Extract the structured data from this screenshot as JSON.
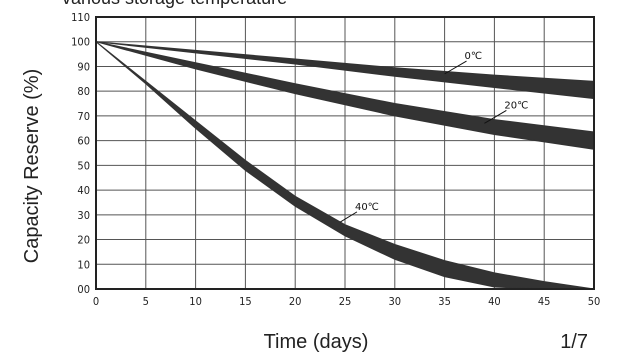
{
  "chart_data": {
    "type": "area",
    "title": "various storage temperature",
    "xlabel": "Time (days)",
    "ylabel": "Capacity Reserve (%)",
    "xlim": [
      0,
      50
    ],
    "ylim": [
      0,
      110
    ],
    "x_ticks": [
      "0",
      "5",
      "10",
      "15",
      "20",
      "25",
      "30",
      "35",
      "40",
      "45",
      "50"
    ],
    "y_ticks": [
      "00",
      "10",
      "20",
      "30",
      "40",
      "50",
      "60",
      "70",
      "80",
      "90",
      "100",
      "110"
    ],
    "grid": true,
    "series": [
      {
        "name": "0℃",
        "color": "#333333",
        "x": [
          0,
          10,
          20,
          30,
          40,
          50
        ],
        "upper": [
          100,
          96.5,
          93,
          89.5,
          86.5,
          84
        ],
        "lower": [
          100,
          95.5,
          91,
          86,
          81.5,
          77
        ]
      },
      {
        "name": "20℃",
        "color": "#333333",
        "x": [
          0,
          10,
          20,
          30,
          40,
          50
        ],
        "upper": [
          100,
          91.5,
          83,
          75,
          68.5,
          63.5
        ],
        "lower": [
          100,
          89,
          79,
          70,
          62.5,
          56.5
        ]
      },
      {
        "name": "40℃",
        "color": "#333333",
        "x": [
          0,
          5,
          10,
          15,
          20,
          25,
          30,
          35,
          40,
          45,
          50
        ],
        "upper": [
          100,
          84,
          68,
          52,
          37.5,
          26,
          18,
          11.5,
          6.5,
          3,
          0
        ],
        "lower": [
          100,
          83,
          65,
          48,
          33.5,
          21.5,
          12,
          5,
          0.8,
          0,
          0
        ]
      }
    ],
    "annotations": [
      {
        "text": "0℃",
        "x": 37,
        "y": 93,
        "arrow_to": [
          35,
          87
        ]
      },
      {
        "text": "20℃",
        "x": 41,
        "y": 73,
        "arrow_to": [
          39,
          67
        ]
      },
      {
        "text": "40℃",
        "x": 26,
        "y": 32,
        "arrow_to": [
          24.5,
          27
        ]
      }
    ]
  },
  "page_number": "1/7"
}
